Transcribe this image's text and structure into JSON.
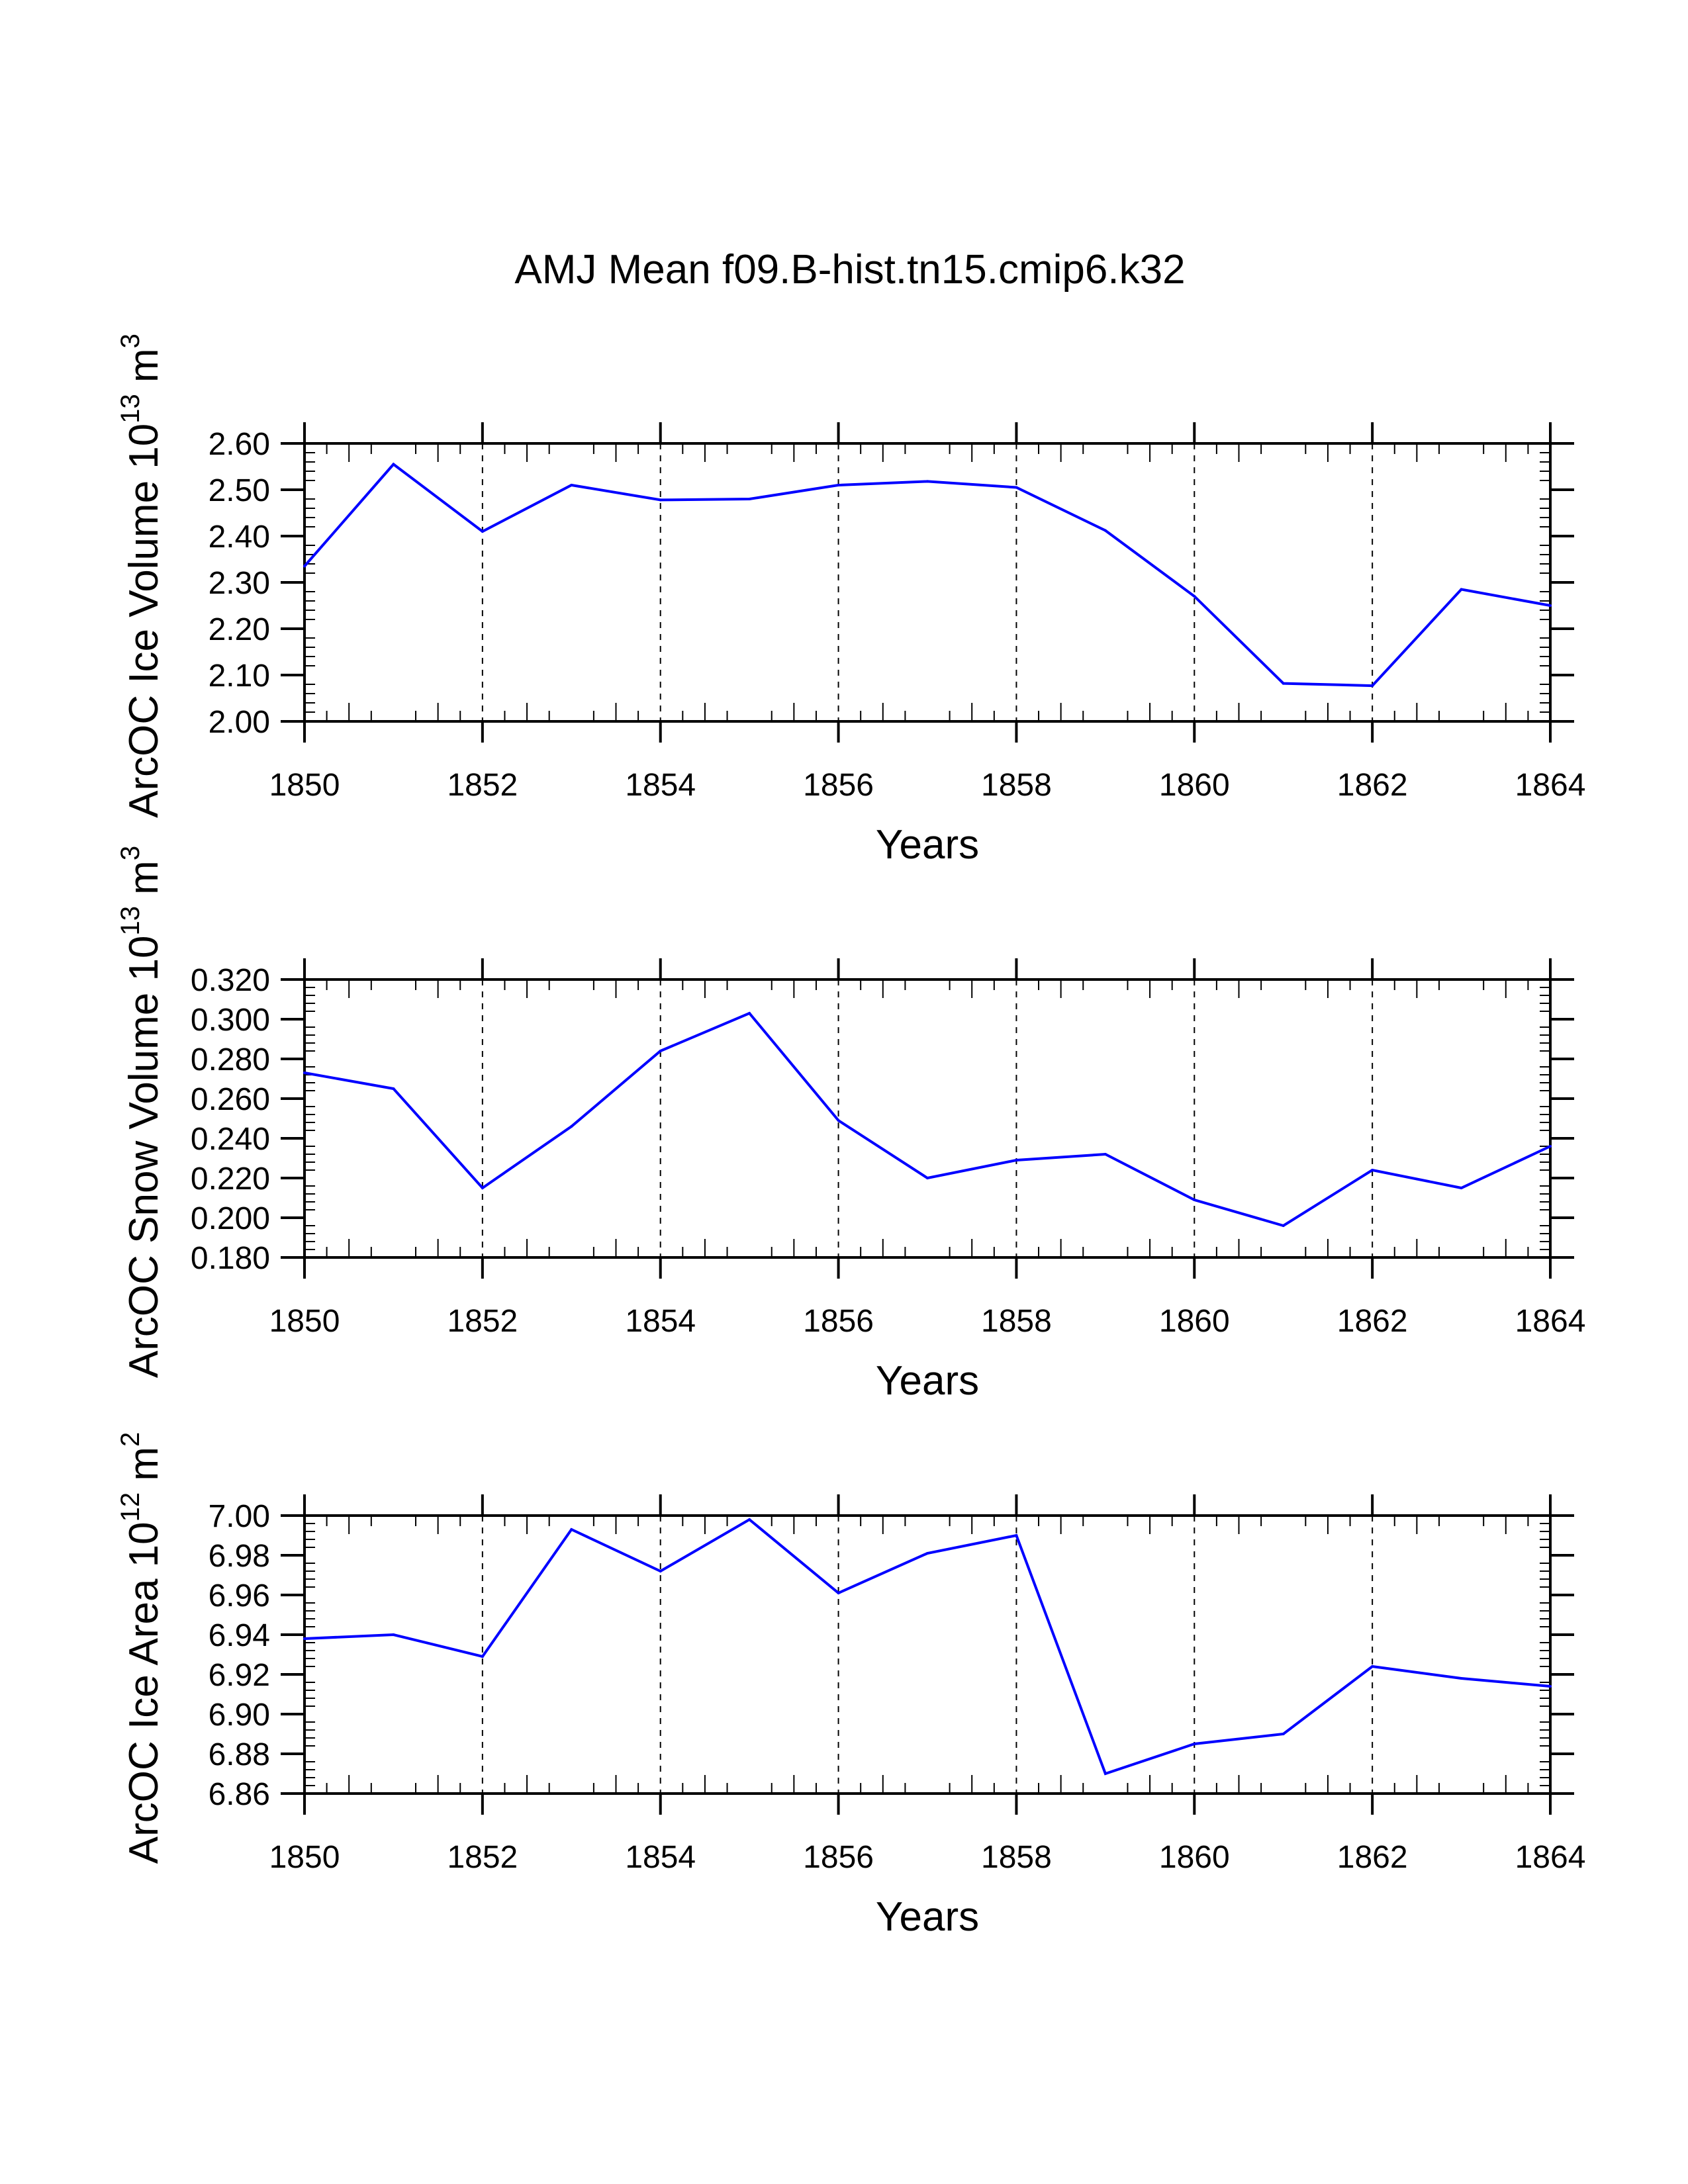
{
  "title": "AMJ Mean f09.B-hist.tn15.cmip6.k32",
  "series_color": "#0000ff",
  "chart_data": [
    {
      "type": "line",
      "ylabel_prefix": "ArcOC Ice Volume 10",
      "ylabel_exp": "13",
      "ylabel_unit": " m",
      "ylabel_unit_exp": "3",
      "xlabel": "Years",
      "xlim": [
        1850,
        1864
      ],
      "ylim": [
        2.0,
        2.6
      ],
      "x_ticks": [
        1850,
        1852,
        1854,
        1856,
        1858,
        1860,
        1862,
        1864
      ],
      "y_ticks": [
        "2.00",
        "2.10",
        "2.20",
        "2.30",
        "2.40",
        "2.50",
        "2.60"
      ],
      "grid": "vertical dashed at major x ticks",
      "x": [
        1850,
        1851,
        1852,
        1853,
        1854,
        1855,
        1856,
        1857,
        1858,
        1859,
        1860,
        1861,
        1862,
        1863,
        1864
      ],
      "values": [
        2.335,
        2.555,
        2.41,
        2.51,
        2.478,
        2.48,
        2.51,
        2.518,
        2.505,
        2.412,
        2.27,
        2.082,
        2.077,
        2.285,
        2.25
      ]
    },
    {
      "type": "line",
      "ylabel_prefix": "ArcOC Snow Volume 10",
      "ylabel_exp": "13",
      "ylabel_unit": " m",
      "ylabel_unit_exp": "3",
      "xlabel": "Years",
      "xlim": [
        1850,
        1864
      ],
      "ylim": [
        0.18,
        0.32
      ],
      "x_ticks": [
        1850,
        1852,
        1854,
        1856,
        1858,
        1860,
        1862,
        1864
      ],
      "y_ticks": [
        "0.180",
        "0.200",
        "0.220",
        "0.240",
        "0.260",
        "0.280",
        "0.300",
        "0.320"
      ],
      "grid": "vertical dashed at major x ticks",
      "x": [
        1850,
        1851,
        1852,
        1853,
        1854,
        1855,
        1856,
        1857,
        1858,
        1859,
        1860,
        1861,
        1862,
        1863,
        1864
      ],
      "values": [
        0.273,
        0.265,
        0.215,
        0.246,
        0.284,
        0.303,
        0.249,
        0.22,
        0.229,
        0.232,
        0.209,
        0.196,
        0.224,
        0.215,
        0.236
      ]
    },
    {
      "type": "line",
      "ylabel_prefix": "ArcOC Ice Area 10",
      "ylabel_exp": "12",
      "ylabel_unit": " m",
      "ylabel_unit_exp": "2",
      "xlabel": "Years",
      "xlim": [
        1850,
        1864
      ],
      "ylim": [
        6.86,
        7.0
      ],
      "x_ticks": [
        1850,
        1852,
        1854,
        1856,
        1858,
        1860,
        1862,
        1864
      ],
      "y_ticks": [
        "6.86",
        "6.88",
        "6.90",
        "6.92",
        "6.94",
        "6.96",
        "6.98",
        "7.00"
      ],
      "grid": "vertical dashed at major x ticks",
      "x": [
        1850,
        1851,
        1852,
        1853,
        1854,
        1855,
        1856,
        1857,
        1858,
        1859,
        1860,
        1861,
        1862,
        1863,
        1864
      ],
      "values": [
        6.938,
        6.94,
        6.929,
        6.993,
        6.972,
        6.998,
        6.961,
        6.981,
        6.99,
        6.87,
        6.885,
        6.89,
        6.924,
        6.918,
        6.914
      ]
    }
  ]
}
